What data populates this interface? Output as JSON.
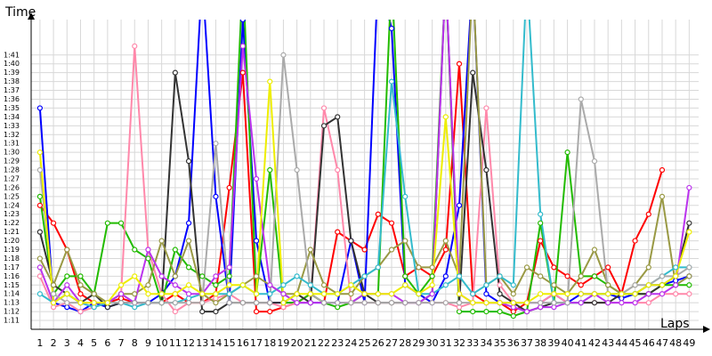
{
  "chart_data": {
    "type": "line",
    "y_title": "Time",
    "x_title": "Laps",
    "x": [
      1,
      2,
      3,
      4,
      5,
      6,
      7,
      8,
      9,
      10,
      11,
      12,
      13,
      14,
      15,
      16,
      17,
      18,
      19,
      20,
      21,
      22,
      23,
      24,
      25,
      26,
      27,
      28,
      29,
      30,
      31,
      32,
      33,
      34,
      35,
      36,
      37,
      38,
      39,
      40,
      41,
      42,
      43,
      44,
      45,
      46,
      47,
      48,
      49
    ],
    "xlim": [
      0.35,
      49.7
    ],
    "ylim": [
      70,
      105
    ],
    "grid": true,
    "yticks": [
      {
        "value": 71,
        "label": "1:11"
      },
      {
        "value": 72,
        "label": "1:12"
      },
      {
        "value": 73,
        "label": "1:13"
      },
      {
        "value": 74,
        "label": "1:14"
      },
      {
        "value": 75,
        "label": "1:15"
      },
      {
        "value": 76,
        "label": "1:16"
      },
      {
        "value": 77,
        "label": "1:17"
      },
      {
        "value": 78,
        "label": "1:18"
      },
      {
        "value": 79,
        "label": "1:19"
      },
      {
        "value": 80,
        "label": "1:20"
      },
      {
        "value": 81,
        "label": "1:21"
      },
      {
        "value": 82,
        "label": "1:22"
      },
      {
        "value": 83,
        "label": "1:23"
      },
      {
        "value": 84,
        "label": "1:24"
      },
      {
        "value": 85,
        "label": "1:25"
      },
      {
        "value": 86,
        "label": "1:26"
      },
      {
        "value": 87,
        "label": "1:27"
      },
      {
        "value": 88,
        "label": "1:28"
      },
      {
        "value": 89,
        "label": "1:29"
      },
      {
        "value": 90,
        "label": "1:30"
      },
      {
        "value": 91,
        "label": "1:31"
      },
      {
        "value": 92,
        "label": "1:32"
      },
      {
        "value": 93,
        "label": "1:33"
      },
      {
        "value": 94,
        "label": "1:34"
      },
      {
        "value": 95,
        "label": "1:35"
      },
      {
        "value": 96,
        "label": "1:36"
      },
      {
        "value": 97,
        "label": "1:37"
      },
      {
        "value": 98,
        "label": "1:38"
      },
      {
        "value": 99,
        "label": "1:39"
      },
      {
        "value": 100,
        "label": "1:40"
      },
      {
        "value": 101,
        "label": "1:41"
      }
    ],
    "series": [
      {
        "color": "#ff0000",
        "values": [
          84,
          82,
          79,
          74,
          73,
          73,
          73.5,
          73,
          73,
          73,
          74,
          73,
          73,
          74,
          86,
          99,
          72,
          72,
          72.5,
          73,
          74,
          73,
          81,
          80,
          79,
          83,
          82,
          76,
          77,
          76,
          79,
          100,
          74,
          73,
          73,
          72,
          73,
          80,
          77,
          76,
          75,
          76,
          77,
          74,
          80,
          83,
          88,
          null,
          null
        ]
      },
      {
        "color": "#0000ff",
        "values": [
          95,
          73,
          72.5,
          72,
          73,
          72.5,
          73,
          73,
          73,
          74,
          76,
          82,
          110,
          85,
          73,
          105,
          80,
          73,
          73,
          73,
          73,
          73,
          73,
          80,
          73,
          110,
          104,
          75,
          74,
          73,
          76,
          84,
          110,
          74,
          73,
          73,
          73,
          73,
          74,
          73,
          74,
          74,
          74,
          73.5,
          74,
          75,
          75,
          75.5,
          76
        ]
      },
      {
        "color": "#22bb00",
        "values": [
          85,
          74,
          76,
          76,
          74,
          82,
          82,
          79,
          78,
          73,
          79,
          77,
          76,
          75,
          76,
          110,
          74,
          88,
          73,
          73,
          74,
          73,
          72.5,
          73,
          74,
          74,
          110,
          76,
          74,
          76,
          110,
          72,
          72,
          72,
          72,
          71.5,
          72,
          82,
          73,
          90,
          76,
          76,
          75,
          74,
          74,
          74,
          75,
          75,
          75
        ]
      },
      {
        "color": "#ff88aa",
        "values": [
          76,
          72.5,
          73,
          72,
          72.5,
          73,
          74,
          102,
          79,
          74,
          72,
          73,
          73,
          73.5,
          74,
          73,
          73,
          73,
          72.5,
          73,
          73,
          95,
          88,
          73,
          73,
          73,
          73,
          73,
          73,
          73,
          73,
          72.5,
          73,
          95,
          75,
          73,
          73,
          73,
          74,
          73,
          73,
          73,
          73,
          73,
          73,
          73,
          74,
          74,
          74
        ]
      },
      {
        "color": "#333333",
        "values": [
          81,
          75,
          74,
          73,
          74,
          72.5,
          73,
          73,
          73,
          73,
          99,
          89,
          72,
          72,
          73,
          73,
          73,
          73,
          73,
          74,
          73,
          93,
          94,
          80,
          74,
          73,
          73,
          73,
          73,
          74,
          110,
          73,
          99,
          88,
          74,
          73,
          72,
          72.5,
          73,
          73,
          73,
          73,
          73,
          74,
          74,
          74,
          75,
          76,
          82
        ]
      },
      {
        "color": "#999944",
        "values": [
          78,
          75,
          79,
          75,
          74,
          73,
          74,
          74,
          75,
          80,
          76,
          80,
          74,
          73,
          74,
          75,
          76,
          75,
          74,
          74,
          79,
          75,
          74,
          74,
          76,
          77,
          79,
          80,
          77,
          77,
          80,
          76,
          110,
          75,
          76,
          74,
          77,
          76,
          75,
          74,
          76,
          79,
          75,
          74,
          75,
          77,
          85,
          75,
          76
        ]
      },
      {
        "color": "#33bbcc",
        "values": [
          74,
          73,
          74,
          73,
          72.5,
          73,
          73,
          72.5,
          73,
          73,
          73,
          73.5,
          74,
          74,
          74,
          75,
          74,
          74,
          75,
          76,
          75,
          74,
          74,
          75,
          76,
          77,
          98,
          85,
          74,
          74,
          75,
          76,
          74,
          75,
          76,
          75,
          110,
          83,
          73,
          73,
          73,
          74,
          74,
          74,
          74,
          75,
          76,
          77,
          77
        ]
      },
      {
        "color": "#bb33ee",
        "values": [
          77,
          73,
          75,
          73,
          73,
          73,
          74,
          73,
          79,
          76,
          75,
          74,
          74,
          76,
          77,
          102,
          87,
          75,
          74,
          73,
          73,
          73,
          73,
          73,
          74,
          74,
          74,
          73,
          73,
          74,
          110,
          74,
          73,
          73,
          73,
          72.5,
          72,
          72.5,
          72.5,
          73,
          73,
          74,
          73,
          73,
          73,
          74,
          74,
          75,
          86
        ]
      },
      {
        "color": "#aaaaaa",
        "values": [
          88,
          74,
          73,
          73,
          73,
          73,
          73,
          73,
          73,
          73,
          73,
          73,
          73,
          91,
          73,
          73,
          73,
          73,
          101,
          88,
          74,
          73,
          73,
          73,
          73,
          73,
          73,
          73,
          73,
          73,
          73,
          73,
          73,
          73,
          73,
          73,
          73,
          73,
          73,
          73,
          96,
          89,
          74,
          74,
          75,
          75,
          76,
          76,
          77
        ]
      },
      {
        "color": "#eeee00",
        "values": [
          90,
          73,
          74,
          73,
          73,
          73,
          75,
          76,
          74,
          74,
          74,
          75,
          74,
          74,
          75,
          75,
          74,
          98,
          73,
          74,
          74,
          74,
          74,
          75,
          74,
          74,
          74,
          75,
          74,
          75,
          94,
          74,
          73,
          73,
          73,
          73,
          73,
          74,
          74,
          74,
          74,
          74,
          74,
          74,
          74,
          75,
          75,
          76,
          81
        ]
      }
    ]
  }
}
